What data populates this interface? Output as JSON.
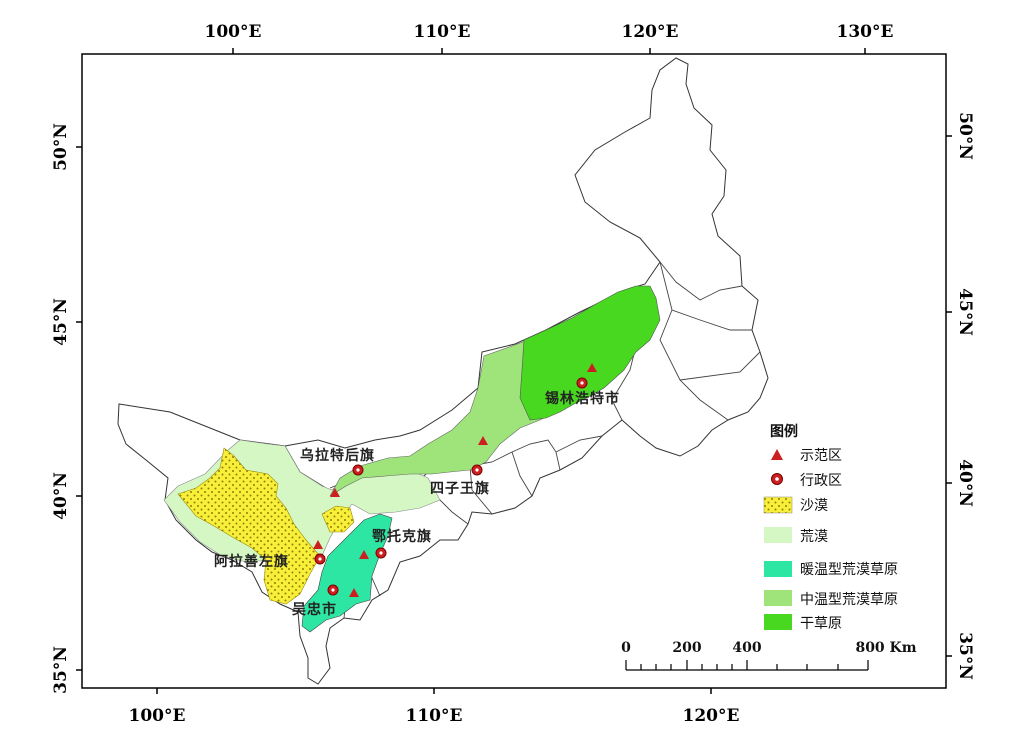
{
  "map": {
    "top_longitude_labels": [
      "100°E",
      "110°E",
      "120°E",
      "130°E"
    ],
    "bottom_longitude_labels": [
      "100°E",
      "110°E",
      "120°E"
    ],
    "left_latitude_labels": [
      "50°N",
      "45°N",
      "40°N",
      "35°N"
    ],
    "right_latitude_labels": [
      "50°N",
      "45°N",
      "40°N",
      "35°N"
    ],
    "place_labels": [
      "乌拉特后旗",
      "锡林浩特市",
      "四子王旗",
      "鄂托克旗",
      "阿拉善左旗",
      "吴忠市"
    ],
    "colors": {
      "desert": "#f7f03a",
      "desert_dots": "#9a7a00",
      "desert_steppe": "#d4f7c4",
      "warm_desert_steppe_grassland": "#2ee6a4",
      "temperate_desert_steppe_grassland": "#9ee47a",
      "dry_grassland": "#48d820",
      "marker": "#cc1f1f",
      "boundary": "#333333"
    }
  },
  "legend": {
    "title": "图例",
    "items": [
      {
        "label": "示范区",
        "symbol": "triangle-icon"
      },
      {
        "label": "行政区",
        "symbol": "circled-dot-icon"
      },
      {
        "label": "沙漠",
        "symbol": "dotted-yellow-swatch"
      },
      {
        "label": "荒漠",
        "symbol": "pale-green-swatch"
      },
      {
        "label": "暖温型荒漠草原",
        "symbol": "teal-swatch"
      },
      {
        "label": "中温型荒漠草原",
        "symbol": "light-green-swatch"
      },
      {
        "label": "干草原",
        "symbol": "green-swatch"
      }
    ]
  },
  "scale_bar": {
    "ticks": [
      "0",
      "200",
      "400",
      "800 Km"
    ]
  }
}
